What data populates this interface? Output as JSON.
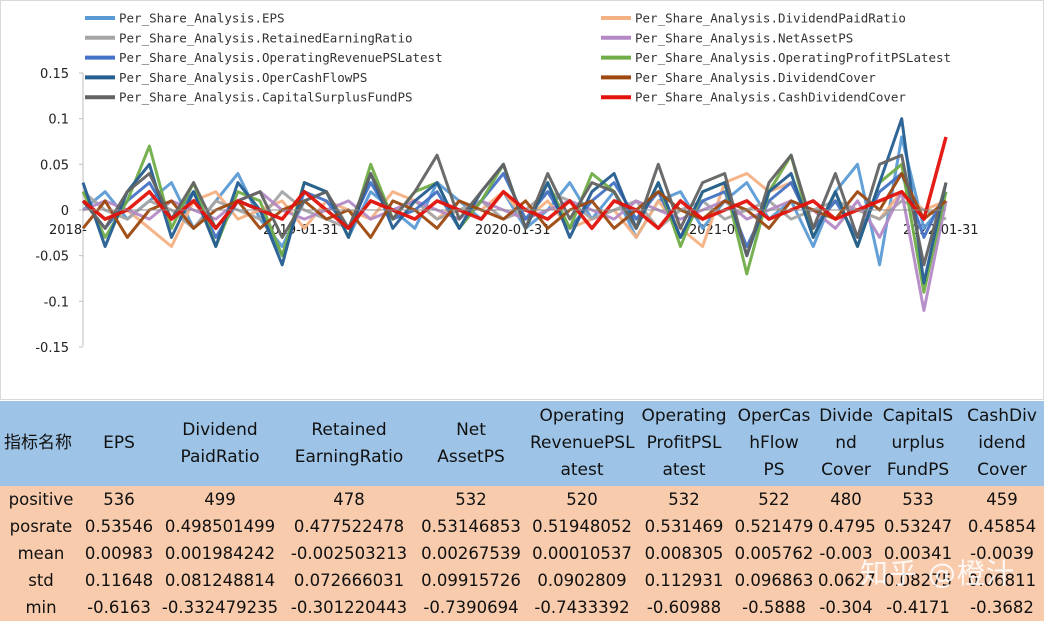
{
  "chart_data": {
    "type": "line",
    "y_ticks": [
      "0.15",
      "0.1",
      "0.05",
      "0",
      "-0.05",
      "-0.1",
      "-0.15"
    ],
    "x_tick_labels": [
      "2018-",
      "2019-01-31",
      "2020-01-31",
      "2021-0",
      "2022-01-31"
    ],
    "ylim": [
      -0.15,
      0.15
    ],
    "grid": false,
    "legend_position": "top",
    "series": [
      {
        "name": "Per_Share_Analysis.EPS",
        "color": "#5b9bd5",
        "values": [
          0.0,
          0.02,
          -0.01,
          0.01,
          0.03,
          -0.02,
          0.01,
          0.04,
          -0.01,
          -0.04,
          0.01,
          0.02,
          -0.03,
          0.02,
          0.0,
          -0.02,
          0.03,
          0.01,
          -0.01,
          0.02,
          -0.02,
          0.0,
          0.03,
          -0.01,
          0.02,
          -0.03,
          0.01,
          0.02,
          -0.02,
          0.01,
          0.03,
          -0.01,
          0.01,
          -0.04,
          0.02,
          0.05,
          -0.06,
          0.08,
          -0.02,
          0.01
        ]
      },
      {
        "name": "Per_Share_Analysis.DividendPaidRatio",
        "color": "#f4b183",
        "values": [
          0.01,
          -0.01,
          0.0,
          -0.02,
          -0.04,
          0.01,
          0.02,
          -0.01,
          0.0,
          0.01,
          -0.02,
          0.01,
          0.0,
          -0.01,
          0.02,
          0.01,
          -0.01,
          0.01,
          0.0,
          0.02,
          -0.01,
          0.01,
          -0.02,
          -0.01,
          0.0,
          -0.03,
          0.01,
          -0.02,
          -0.04,
          0.03,
          0.04,
          0.02,
          0.03,
          -0.02,
          0.01,
          0.0,
          -0.01,
          0.02,
          0.0,
          0.01
        ]
      },
      {
        "name": "Per_Share_Analysis.RetainedEarningRatio",
        "color": "#a5a5a5",
        "values": [
          0.02,
          0.0,
          -0.01,
          0.01,
          0.0,
          -0.02,
          0.01,
          0.0,
          -0.01,
          0.02,
          0.0,
          -0.01,
          -0.02,
          0.01,
          0.0,
          0.01,
          -0.01,
          0.0,
          0.01,
          -0.01,
          0.0,
          0.02,
          0.01,
          -0.01,
          0.0,
          0.01,
          -0.02,
          0.0,
          0.01,
          -0.01,
          0.0,
          0.01,
          -0.01,
          0.0,
          0.01,
          0.0,
          -0.01,
          0.01,
          0.0,
          -0.01
        ]
      },
      {
        "name": "Per_Share_Analysis.NetAssetPS",
        "color": "#b48ac6",
        "values": [
          0.0,
          0.01,
          0.0,
          -0.01,
          0.01,
          0.0,
          -0.01,
          0.01,
          0.02,
          0.0,
          -0.01,
          0.0,
          0.01,
          -0.01,
          0.0,
          0.01,
          0.0,
          -0.01,
          0.01,
          0.0,
          -0.01,
          0.0,
          0.01,
          0.0,
          -0.01,
          0.01,
          0.0,
          -0.01,
          0.0,
          0.01,
          -0.01,
          0.0,
          0.01,
          0.0,
          -0.02,
          0.01,
          -0.03,
          0.02,
          -0.11,
          0.01
        ]
      },
      {
        "name": "Per_Share_Analysis.OperatingRevenuePSLatest",
        "color": "#4472c4",
        "values": [
          0.01,
          -0.02,
          0.01,
          0.03,
          -0.01,
          0.02,
          -0.03,
          0.01,
          0.0,
          -0.05,
          0.02,
          0.01,
          -0.02,
          0.03,
          -0.01,
          0.0,
          0.02,
          -0.02,
          0.01,
          0.04,
          -0.01,
          0.02,
          -0.02,
          0.01,
          0.03,
          -0.01,
          0.02,
          -0.03,
          0.01,
          0.02,
          -0.04,
          0.01,
          0.03,
          -0.02,
          0.01,
          -0.03,
          0.02,
          0.04,
          -0.03,
          0.02
        ]
      },
      {
        "name": "Per_Share_Analysis.OperatingProfitPSLatest",
        "color": "#70ad47",
        "values": [
          0.02,
          -0.03,
          0.01,
          0.07,
          -0.02,
          0.03,
          -0.04,
          0.02,
          0.01,
          -0.05,
          0.03,
          0.02,
          -0.03,
          0.05,
          -0.01,
          0.02,
          0.03,
          -0.02,
          0.01,
          0.05,
          -0.02,
          0.03,
          -0.02,
          0.04,
          0.02,
          -0.02,
          0.03,
          -0.04,
          0.02,
          0.03,
          -0.07,
          0.02,
          0.06,
          -0.03,
          0.02,
          -0.04,
          0.03,
          0.05,
          -0.09,
          0.02
        ]
      },
      {
        "name": "Per_Share_Analysis.OperCashFlowPS",
        "color": "#255e91",
        "values": [
          0.03,
          -0.04,
          0.02,
          0.05,
          -0.03,
          0.02,
          -0.04,
          0.03,
          0.0,
          -0.06,
          0.03,
          0.02,
          -0.03,
          0.04,
          -0.02,
          0.01,
          0.03,
          -0.02,
          0.02,
          0.05,
          -0.02,
          0.03,
          -0.03,
          0.02,
          0.04,
          -0.02,
          0.03,
          -0.03,
          0.02,
          0.03,
          -0.05,
          0.02,
          0.04,
          -0.03,
          0.02,
          -0.04,
          0.03,
          0.1,
          -0.08,
          0.03
        ]
      },
      {
        "name": "Per_Share_Analysis.DividendCover",
        "color": "#9e480e",
        "values": [
          -0.02,
          0.01,
          -0.03,
          0.0,
          0.01,
          -0.02,
          0.0,
          0.01,
          -0.02,
          0.0,
          0.01,
          -0.01,
          0.0,
          -0.03,
          0.01,
          0.0,
          -0.02,
          0.01,
          0.0,
          -0.01,
          0.01,
          -0.02,
          0.0,
          0.01,
          -0.02,
          0.0,
          0.02,
          0.0,
          -0.01,
          0.01,
          0.0,
          -0.02,
          0.01,
          0.0,
          -0.01,
          0.02,
          0.0,
          0.04,
          -0.01,
          0.01
        ]
      },
      {
        "name": "Per_Share_Analysis.CapitalSurplusFundPS",
        "color": "#636363",
        "values": [
          0.01,
          -0.02,
          0.02,
          0.04,
          -0.01,
          0.03,
          -0.02,
          0.01,
          0.02,
          -0.03,
          0.01,
          0.02,
          -0.02,
          0.04,
          -0.01,
          0.02,
          0.06,
          -0.01,
          0.02,
          0.05,
          -0.02,
          0.04,
          -0.01,
          0.03,
          0.02,
          -0.02,
          0.05,
          -0.02,
          0.03,
          0.04,
          -0.05,
          0.03,
          0.06,
          -0.02,
          0.04,
          -0.03,
          0.05,
          0.06,
          -0.06,
          0.03
        ]
      },
      {
        "name": "Per_Share_Analysis.CashDividendCover",
        "color": "#e3120b",
        "values": [
          0.01,
          -0.01,
          0.0,
          0.02,
          -0.01,
          0.01,
          -0.02,
          0.01,
          0.0,
          -0.01,
          0.02,
          0.0,
          -0.02,
          0.01,
          0.0,
          -0.01,
          0.01,
          0.0,
          -0.01,
          0.02,
          0.0,
          -0.01,
          0.01,
          -0.02,
          0.01,
          0.0,
          -0.02,
          0.01,
          -0.01,
          0.0,
          0.01,
          -0.01,
          0.0,
          0.01,
          -0.01,
          0.0,
          0.01,
          0.02,
          -0.01,
          0.08
        ]
      }
    ]
  },
  "table": {
    "headers": [
      [
        "指标名称"
      ],
      [
        "EPS"
      ],
      [
        "Dividend",
        "PaidRatio"
      ],
      [
        "Retained",
        "EarningRatio"
      ],
      [
        "Net",
        "AssetPS"
      ],
      [
        "Operating",
        "RevenuePSL",
        "atest"
      ],
      [
        "Operating",
        "ProfitPSL",
        "atest"
      ],
      [
        "OperCas",
        "hFlow",
        "PS"
      ],
      [
        "Divide",
        "nd",
        "Cover"
      ],
      [
        "CapitalS",
        "urplus",
        "FundPS"
      ],
      [
        "CashDiv",
        "idend",
        "Cover"
      ]
    ],
    "rows": [
      [
        "positive",
        "536",
        "499",
        "478",
        "532",
        "520",
        "532",
        "522",
        "480",
        "533",
        "459"
      ],
      [
        "posrate",
        "0.53546",
        "0.498501499",
        "0.477522478",
        "0.53146853",
        "0.51948052",
        "0.531469",
        "0.521479",
        "0.4795",
        "0.53247",
        "0.45854"
      ],
      [
        "mean",
        "0.00983",
        "0.001984242",
        "-0.002503213",
        "0.00267539",
        "0.00010537",
        "0.008305",
        "0.005762",
        "-0.003",
        "0.00341",
        "-0.0039"
      ],
      [
        "std",
        "0.11648",
        "0.081248814",
        "0.072666031",
        "0.09915726",
        "0.0902809",
        "0.112931",
        "0.096863",
        "0.0627",
        "0.08275",
        "0.06811"
      ],
      [
        "min",
        "-0.6163",
        "-0.332479235",
        "-0.301220443",
        "-0.7390694",
        "-0.7433392",
        "-0.60988",
        "-0.5888",
        "-0.304",
        "-0.4171",
        "-0.3682"
      ]
    ]
  },
  "watermark": "知乎 @橙汁"
}
